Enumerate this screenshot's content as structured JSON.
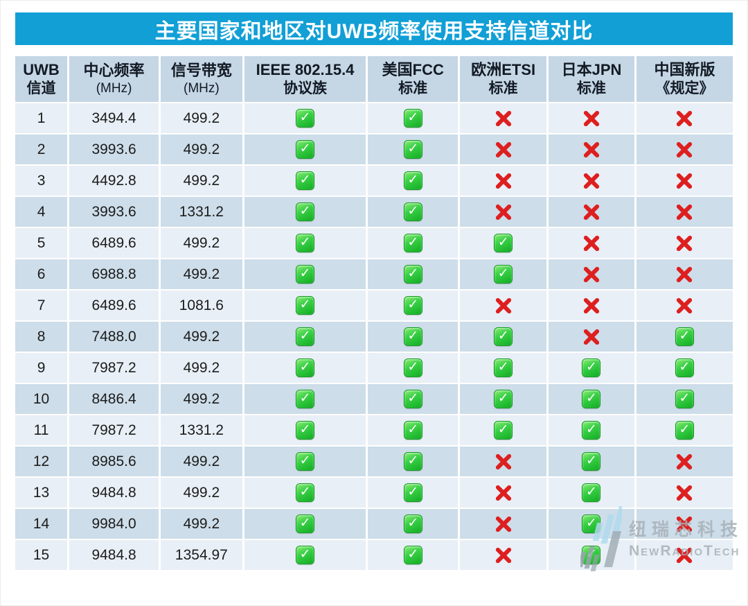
{
  "chart_data": {
    "type": "table",
    "title": "主要国家和地区对UWB频率使用支持信道对比",
    "headers": [
      {
        "line1": "UWB",
        "line2": "信道"
      },
      {
        "line1": "中心频率",
        "line2": "(MHz)"
      },
      {
        "line1": "信号带宽",
        "line2": "(MHz)"
      },
      {
        "line1": "IEEE 802.15.4",
        "line2": "协议族"
      },
      {
        "line1": "美国FCC",
        "line2": "标准"
      },
      {
        "line1": "欧洲ETSI",
        "line2": "标准"
      },
      {
        "line1": "日本JPN",
        "line2": "标准"
      },
      {
        "line1": "中国新版",
        "line2": "《规定》"
      }
    ],
    "support_columns": [
      "IEEE 802.15.4 协议族",
      "美国FCC 标准",
      "欧洲ETSI 标准",
      "日本JPN 标准",
      "中国新版《规定》"
    ],
    "rows": [
      {
        "channel": "1",
        "center_freq_mhz": "3494.4",
        "bandwidth_mhz": "499.2",
        "support": [
          true,
          true,
          false,
          false,
          false
        ]
      },
      {
        "channel": "2",
        "center_freq_mhz": "3993.6",
        "bandwidth_mhz": "499.2",
        "support": [
          true,
          true,
          false,
          false,
          false
        ]
      },
      {
        "channel": "3",
        "center_freq_mhz": "4492.8",
        "bandwidth_mhz": "499.2",
        "support": [
          true,
          true,
          false,
          false,
          false
        ]
      },
      {
        "channel": "4",
        "center_freq_mhz": "3993.6",
        "bandwidth_mhz": "1331.2",
        "support": [
          true,
          true,
          false,
          false,
          false
        ]
      },
      {
        "channel": "5",
        "center_freq_mhz": "6489.6",
        "bandwidth_mhz": "499.2",
        "support": [
          true,
          true,
          true,
          false,
          false
        ]
      },
      {
        "channel": "6",
        "center_freq_mhz": "6988.8",
        "bandwidth_mhz": "499.2",
        "support": [
          true,
          true,
          true,
          false,
          false
        ]
      },
      {
        "channel": "7",
        "center_freq_mhz": "6489.6",
        "bandwidth_mhz": "1081.6",
        "support": [
          true,
          true,
          false,
          false,
          false
        ]
      },
      {
        "channel": "8",
        "center_freq_mhz": "7488.0",
        "bandwidth_mhz": "499.2",
        "support": [
          true,
          true,
          true,
          false,
          true
        ]
      },
      {
        "channel": "9",
        "center_freq_mhz": "7987.2",
        "bandwidth_mhz": "499.2",
        "support": [
          true,
          true,
          true,
          true,
          true
        ]
      },
      {
        "channel": "10",
        "center_freq_mhz": "8486.4",
        "bandwidth_mhz": "499.2",
        "support": [
          true,
          true,
          true,
          true,
          true
        ]
      },
      {
        "channel": "11",
        "center_freq_mhz": "7987.2",
        "bandwidth_mhz": "1331.2",
        "support": [
          true,
          true,
          true,
          true,
          true
        ]
      },
      {
        "channel": "12",
        "center_freq_mhz": "8985.6",
        "bandwidth_mhz": "499.2",
        "support": [
          true,
          true,
          false,
          true,
          false
        ]
      },
      {
        "channel": "13",
        "center_freq_mhz": "9484.8",
        "bandwidth_mhz": "499.2",
        "support": [
          true,
          true,
          false,
          true,
          false
        ]
      },
      {
        "channel": "14",
        "center_freq_mhz": "9984.0",
        "bandwidth_mhz": "499.2",
        "support": [
          true,
          true,
          false,
          true,
          false
        ]
      },
      {
        "channel": "15",
        "center_freq_mhz": "9484.8",
        "bandwidth_mhz": "1354.97",
        "support": [
          true,
          true,
          false,
          true,
          false
        ]
      }
    ]
  },
  "icons": {
    "supported": "check-icon",
    "unsupported": "cross-icon",
    "check_glyph": "✓"
  },
  "watermark": {
    "company_cn": "纽瑞芯科技",
    "company_en": "NewRadioTech"
  },
  "colors": {
    "title_bar": "#119FD6",
    "title_text": "#FFFFFF",
    "header_bg": "#C5D6E5",
    "header_text": "#121A24",
    "row_odd_bg": "#E8EFF6",
    "row_even_bg": "#CDDDE9",
    "check_green": "#12AC24",
    "cross_red": "#DE1F1F",
    "watermark_gray": "#A6AFB6",
    "logo_blue": "#AFDBEF"
  }
}
